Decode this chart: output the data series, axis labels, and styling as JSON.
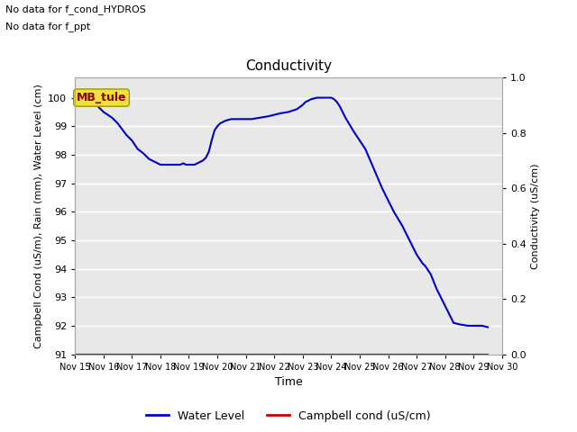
{
  "title": "Conductivity",
  "xlabel": "Time",
  "ylabel_left": "Campbell Cond (uS/m), Rain (mm), Water Level (cm)",
  "ylabel_right": "Conductivity (uS/cm)",
  "annotations": [
    "No data for f_cond_HYDROS",
    "No data for f_ppt"
  ],
  "legend_label_box": "MB_tule",
  "ylim_left": [
    91.0,
    100.7
  ],
  "ylim_right": [
    0.0,
    1.0
  ],
  "yticks_left": [
    91.0,
    92.0,
    93.0,
    94.0,
    95.0,
    96.0,
    97.0,
    98.0,
    99.0,
    100.0
  ],
  "yticks_right": [
    0.0,
    0.2,
    0.4,
    0.6,
    0.8,
    1.0
  ],
  "xtick_labels": [
    "Nov 15",
    "Nov 16",
    "Nov 17",
    "Nov 18",
    "Nov 19",
    "Nov 20",
    "Nov 21",
    "Nov 22",
    "Nov 23",
    "Nov 24",
    "Nov 25",
    "Nov 26",
    "Nov 27",
    "Nov 28",
    "Nov 29",
    "Nov 30"
  ],
  "bg_color": "#e8e8e8",
  "line_color_water": "#0000cc",
  "line_color_campbell": "#cc0000",
  "legend_entries": [
    "Water Level",
    "Campbell cond (uS/cm)"
  ],
  "water_level_x": [
    15.0,
    15.1,
    15.3,
    15.5,
    15.8,
    16.0,
    16.3,
    16.5,
    16.8,
    17.0,
    17.2,
    17.4,
    17.6,
    17.8,
    18.0,
    18.1,
    18.2,
    18.3,
    18.4,
    18.5,
    18.6,
    18.7,
    18.8,
    18.9,
    19.0,
    19.1,
    19.2,
    19.3,
    19.5,
    19.6,
    19.7,
    19.8,
    19.9,
    20.0,
    20.1,
    20.2,
    20.3,
    20.5,
    20.8,
    21.0,
    21.2,
    21.5,
    21.8,
    22.0,
    22.2,
    22.5,
    22.8,
    23.0,
    23.1,
    23.2,
    23.3,
    23.5,
    23.7,
    23.9,
    24.0,
    24.1,
    24.2,
    24.3,
    24.5,
    24.8,
    25.0,
    25.2,
    25.5,
    25.8,
    26.0,
    26.2,
    26.5,
    26.8,
    27.0,
    27.2,
    27.3,
    27.5,
    27.7,
    27.8,
    27.9,
    28.0,
    28.1,
    28.2,
    28.3,
    28.5,
    28.8,
    29.0,
    29.3,
    29.5
  ],
  "water_level_y": [
    100.0,
    100.0,
    99.95,
    99.9,
    99.7,
    99.5,
    99.3,
    99.1,
    98.7,
    98.5,
    98.2,
    98.05,
    97.85,
    97.75,
    97.65,
    97.65,
    97.65,
    97.65,
    97.65,
    97.65,
    97.65,
    97.65,
    97.7,
    97.65,
    97.65,
    97.65,
    97.65,
    97.7,
    97.8,
    97.9,
    98.1,
    98.5,
    98.85,
    99.0,
    99.1,
    99.15,
    99.2,
    99.25,
    99.25,
    99.25,
    99.25,
    99.3,
    99.35,
    99.4,
    99.45,
    99.5,
    99.6,
    99.75,
    99.85,
    99.9,
    99.95,
    100.0,
    100.0,
    100.0,
    100.0,
    99.95,
    99.85,
    99.7,
    99.3,
    98.8,
    98.5,
    98.2,
    97.5,
    96.8,
    96.4,
    96.0,
    95.5,
    94.9,
    94.5,
    94.2,
    94.1,
    93.8,
    93.3,
    93.1,
    92.9,
    92.7,
    92.5,
    92.3,
    92.1,
    92.05,
    92.0,
    92.0,
    92.0,
    91.95
  ]
}
